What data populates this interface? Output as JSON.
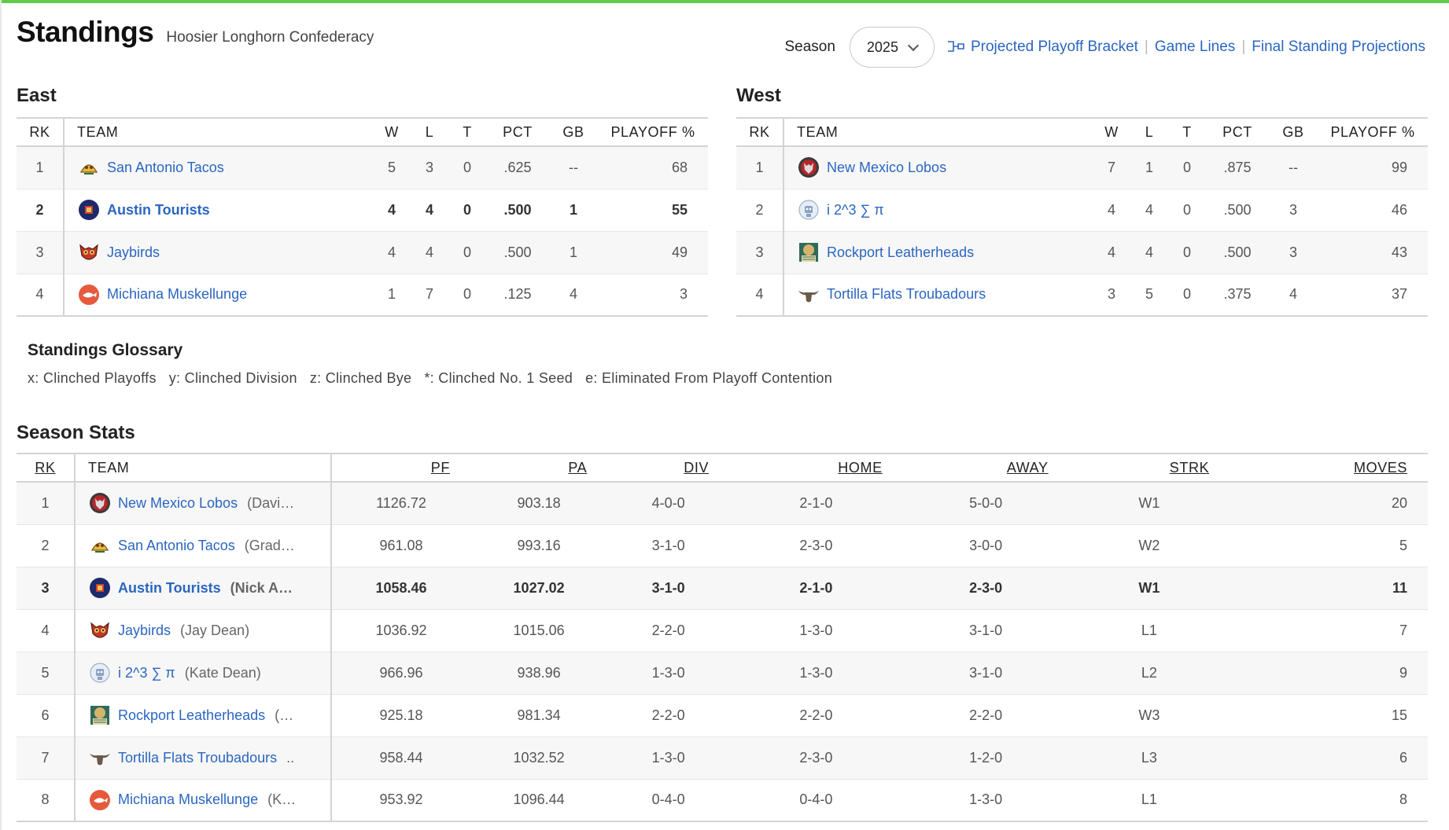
{
  "page": {
    "title": "Standings",
    "subtitle": "Hoosier Longhorn Confederacy"
  },
  "controls": {
    "season_label": "Season",
    "season_value": "2025",
    "links": [
      "Projected Playoff Bracket",
      "Game Lines",
      "Final Standing Projections"
    ],
    "separator": "|"
  },
  "standings_headers": [
    "RK",
    "TEAM",
    "W",
    "L",
    "T",
    "PCT",
    "GB",
    "PLAYOFF %"
  ],
  "east": {
    "title": "East",
    "rows": [
      {
        "rk": "1",
        "team": "San Antonio Tacos",
        "logo": "taco-icon",
        "w": "5",
        "l": "3",
        "t": "0",
        "pct": ".625",
        "gb": "--",
        "playoff": "68"
      },
      {
        "rk": "2",
        "team": "Austin Tourists",
        "logo": "tourists-icon",
        "w": "4",
        "l": "4",
        "t": "0",
        "pct": ".500",
        "gb": "1",
        "playoff": "55"
      },
      {
        "rk": "3",
        "team": "Jaybirds",
        "logo": "owl-icon",
        "w": "4",
        "l": "4",
        "t": "0",
        "pct": ".500",
        "gb": "1",
        "playoff": "49"
      },
      {
        "rk": "4",
        "team": "Michiana Muskellunge",
        "logo": "fish-icon",
        "w": "1",
        "l": "7",
        "t": "0",
        "pct": ".125",
        "gb": "4",
        "playoff": "3"
      }
    ]
  },
  "west": {
    "title": "West",
    "rows": [
      {
        "rk": "1",
        "team": "New Mexico Lobos",
        "logo": "wolf-icon",
        "w": "7",
        "l": "1",
        "t": "0",
        "pct": ".875",
        "gb": "--",
        "playoff": "99"
      },
      {
        "rk": "2",
        "team": "i 2^3 ∑ π",
        "logo": "robot-icon",
        "w": "4",
        "l": "4",
        "t": "0",
        "pct": ".500",
        "gb": "3",
        "playoff": "46"
      },
      {
        "rk": "3",
        "team": "Rockport Leatherheads",
        "logo": "leatherhead-icon",
        "w": "4",
        "l": "4",
        "t": "0",
        "pct": ".500",
        "gb": "3",
        "playoff": "43"
      },
      {
        "rk": "4",
        "team": "Tortilla Flats Troubadours",
        "logo": "longhorn-icon",
        "w": "3",
        "l": "5",
        "t": "0",
        "pct": ".375",
        "gb": "4",
        "playoff": "37"
      }
    ]
  },
  "glossary": {
    "title": "Standings Glossary",
    "items": [
      "x: Clinched Playoffs",
      "y: Clinched Division",
      "z: Clinched Bye",
      "*: Clinched No. 1 Seed",
      "e: Eliminated From Playoff Contention"
    ]
  },
  "season_stats": {
    "title": "Season Stats",
    "headers": [
      "RK",
      "TEAM",
      "PF",
      "PA",
      "DIV",
      "HOME",
      "AWAY",
      "STRK",
      "MOVES"
    ],
    "rows": [
      {
        "rk": "1",
        "team": "New Mexico Lobos",
        "owner": "(Davi…",
        "logo": "wolf-icon",
        "pf": "1126.72",
        "pa": "903.18",
        "div": "4-0-0",
        "home": "2-1-0",
        "away": "5-0-0",
        "strk": "W1",
        "moves": "20"
      },
      {
        "rk": "2",
        "team": "San Antonio Tacos",
        "owner": "(Grad…",
        "logo": "taco-icon",
        "pf": "961.08",
        "pa": "993.16",
        "div": "3-1-0",
        "home": "2-3-0",
        "away": "3-0-0",
        "strk": "W2",
        "moves": "5"
      },
      {
        "rk": "3",
        "team": "Austin Tourists",
        "owner": "(Nick A…",
        "logo": "tourists-icon",
        "pf": "1058.46",
        "pa": "1027.02",
        "div": "3-1-0",
        "home": "2-1-0",
        "away": "2-3-0",
        "strk": "W1",
        "moves": "11"
      },
      {
        "rk": "4",
        "team": "Jaybirds",
        "owner": "(Jay Dean)",
        "logo": "owl-icon",
        "pf": "1036.92",
        "pa": "1015.06",
        "div": "2-2-0",
        "home": "1-3-0",
        "away": "3-1-0",
        "strk": "L1",
        "moves": "7"
      },
      {
        "rk": "5",
        "team": "i 2^3 ∑ π",
        "owner": "(Kate Dean)",
        "logo": "robot-icon",
        "pf": "966.96",
        "pa": "938.96",
        "div": "1-3-0",
        "home": "1-3-0",
        "away": "3-1-0",
        "strk": "L2",
        "moves": "9"
      },
      {
        "rk": "6",
        "team": "Rockport Leatherheads",
        "owner": "(…",
        "logo": "leatherhead-icon",
        "pf": "925.18",
        "pa": "981.34",
        "div": "2-2-0",
        "home": "2-2-0",
        "away": "2-2-0",
        "strk": "W3",
        "moves": "15"
      },
      {
        "rk": "7",
        "team": "Tortilla Flats Troubadours",
        "owner": "..",
        "logo": "longhorn-icon",
        "pf": "958.44",
        "pa": "1032.52",
        "div": "1-3-0",
        "home": "2-3-0",
        "away": "1-2-0",
        "strk": "L3",
        "moves": "6"
      },
      {
        "rk": "8",
        "team": "Michiana Muskellunge",
        "owner": "(K…",
        "logo": "fish-icon",
        "pf": "953.92",
        "pa": "1096.44",
        "div": "0-4-0",
        "home": "0-4-0",
        "away": "1-3-0",
        "strk": "L1",
        "moves": "8"
      }
    ]
  },
  "colors": {
    "accent_bar": "#5fcb47",
    "link": "#2b66c0",
    "row_alt": "#f7f7f7"
  }
}
